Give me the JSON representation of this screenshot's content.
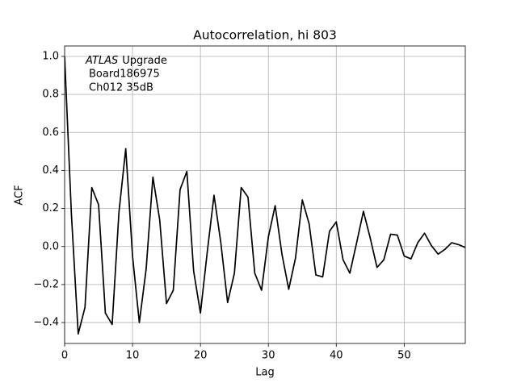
{
  "chart_data": {
    "type": "line",
    "title": "Autocorrelation, hi 803",
    "x_label": "Lag",
    "y_label": "ACF",
    "annotation": [
      "ATLAS",
      "Upgrade",
      "Board186975",
      "Ch012 35dB"
    ],
    "x": [
      0,
      1,
      2,
      3,
      4,
      5,
      6,
      7,
      8,
      9,
      10,
      11,
      12,
      13,
      14,
      15,
      16,
      17,
      18,
      19,
      20,
      21,
      22,
      23,
      24,
      25,
      26,
      27,
      28,
      29,
      30,
      31,
      32,
      33,
      34,
      35,
      36,
      37,
      38,
      39,
      40,
      41,
      42,
      43,
      44,
      45,
      46,
      47,
      48,
      49,
      50,
      51,
      52,
      53,
      54,
      55,
      56,
      57,
      58,
      59
    ],
    "values": [
      1.0,
      0.17,
      -0.46,
      -0.32,
      0.31,
      0.22,
      -0.35,
      -0.41,
      0.18,
      0.515,
      -0.05,
      -0.4,
      -0.12,
      0.365,
      0.14,
      -0.3,
      -0.23,
      0.3,
      0.395,
      -0.13,
      -0.35,
      -0.03,
      0.27,
      0.02,
      -0.295,
      -0.14,
      0.31,
      0.26,
      -0.14,
      -0.23,
      0.05,
      0.215,
      -0.04,
      -0.225,
      -0.06,
      0.245,
      0.12,
      -0.15,
      -0.16,
      0.08,
      0.13,
      -0.07,
      -0.14,
      0.02,
      0.185,
      0.045,
      -0.11,
      -0.07,
      0.065,
      0.06,
      -0.05,
      -0.065,
      0.02,
      0.07,
      0.005,
      -0.04,
      -0.015,
      0.02,
      0.01,
      -0.005
    ],
    "color": "#000000",
    "xlim": [
      0,
      59
    ],
    "xticks": [
      0,
      10,
      20,
      30,
      40,
      50
    ],
    "ylim": [
      -0.51,
      1.055
    ],
    "yticks": [
      {
        "value": -0.4,
        "label": "−0.4"
      },
      {
        "value": -0.2,
        "label": "−0.2"
      },
      {
        "value": 0,
        "label": "0.0"
      },
      0.2,
      0.4,
      0.6,
      0.8,
      {
        "value": 1,
        "label": "1.0"
      }
    ],
    "grid": true
  }
}
